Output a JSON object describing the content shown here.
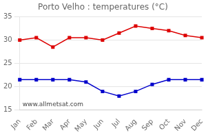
{
  "chart_data": {
    "type": "line",
    "title": "Porto Velho : temperatures (°C)",
    "categories": [
      "Jan",
      "Feb",
      "Mar",
      "Apr",
      "May",
      "Jun",
      "Jul",
      "Aug",
      "Sep",
      "Oct",
      "Nov",
      "Dec"
    ],
    "series": [
      {
        "color": "#dd0000",
        "values": [
          30.0,
          30.5,
          28.5,
          30.5,
          30.5,
          30.0,
          31.5,
          33.0,
          32.5,
          32.0,
          31.0,
          30.5
        ]
      },
      {
        "color": "#0000cc",
        "values": [
          21.5,
          21.5,
          21.5,
          21.5,
          21.0,
          19.0,
          18.0,
          19.0,
          20.5,
          21.5,
          21.5,
          21.5
        ]
      }
    ],
    "ylim": [
      15,
      35
    ],
    "yticks": [
      15,
      20,
      25,
      30,
      35
    ],
    "grid": "y",
    "marker": "square",
    "annotations": [
      "www.allmetsat.com"
    ]
  }
}
